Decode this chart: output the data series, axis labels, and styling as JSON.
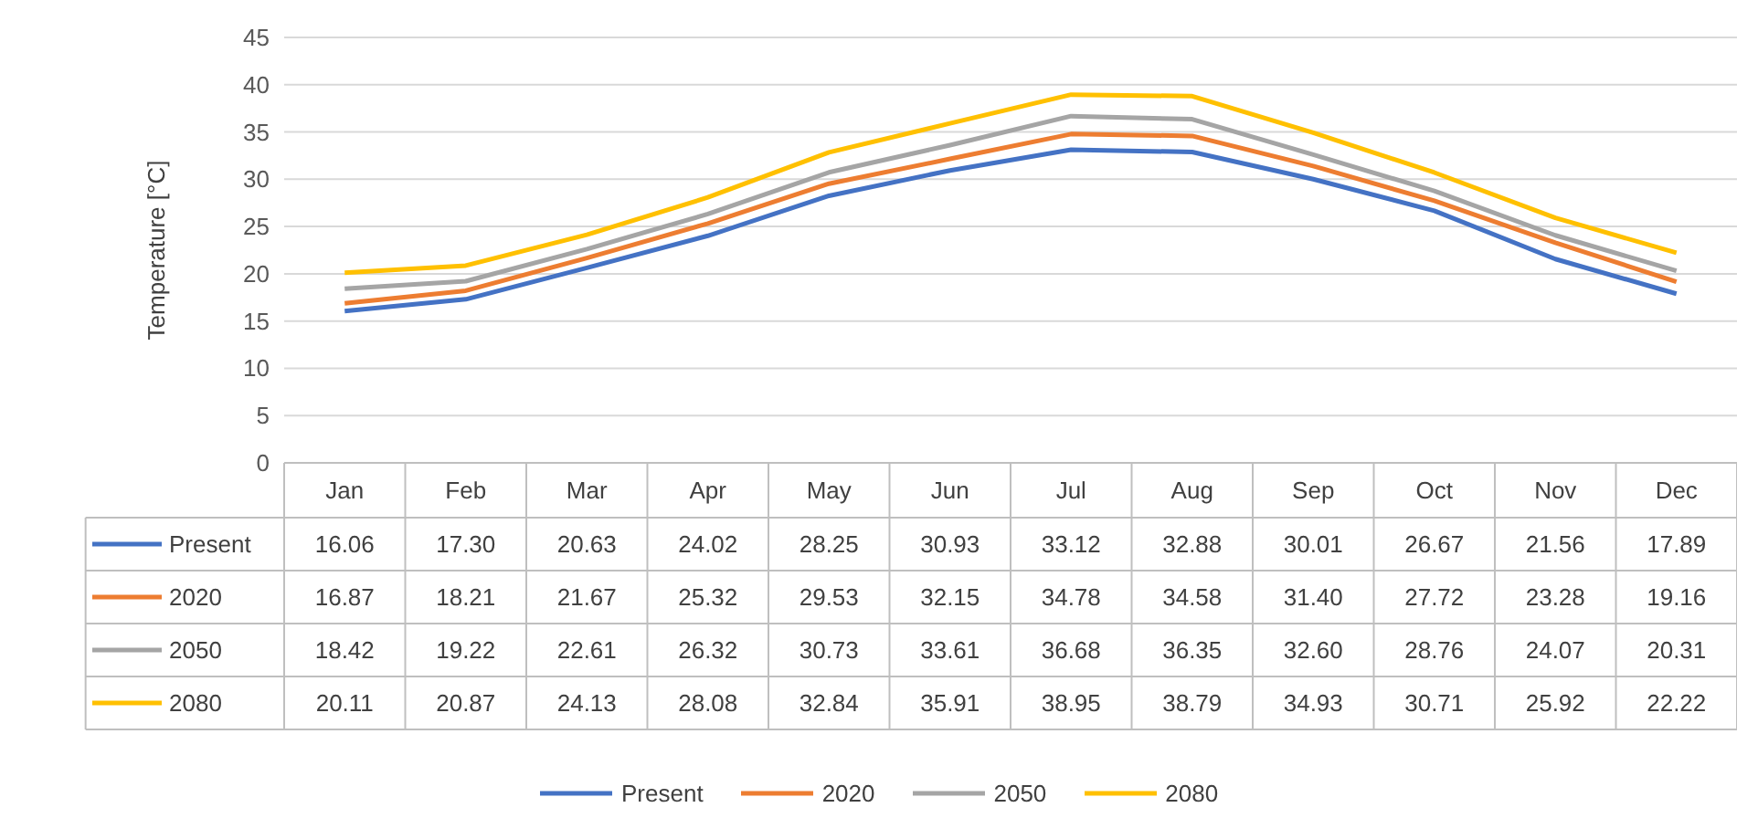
{
  "chart_data": {
    "type": "line",
    "ylabel": "Temperature [°C]",
    "categories": [
      "Jan",
      "Feb",
      "Mar",
      "Apr",
      "May",
      "Jun",
      "Jul",
      "Aug",
      "Sep",
      "Oct",
      "Nov",
      "Dec"
    ],
    "series": [
      {
        "name": "Present",
        "color": "#4472c4",
        "values": [
          16.06,
          17.3,
          20.63,
          24.02,
          28.25,
          30.93,
          33.12,
          32.88,
          30.01,
          26.67,
          21.56,
          17.89
        ],
        "value_labels": [
          "16.06",
          "17.30",
          "20.63",
          "24.02",
          "28.25",
          "30.93",
          "33.12",
          "32.88",
          "30.01",
          "26.67",
          "21.56",
          "17.89"
        ]
      },
      {
        "name": "2020",
        "color": "#ed7d31",
        "values": [
          16.87,
          18.21,
          21.67,
          25.32,
          29.53,
          32.15,
          34.78,
          34.58,
          31.4,
          27.72,
          23.28,
          19.16
        ],
        "value_labels": [
          "16.87",
          "18.21",
          "21.67",
          "25.32",
          "29.53",
          "32.15",
          "34.78",
          "34.58",
          "31.40",
          "27.72",
          "23.28",
          "19.16"
        ]
      },
      {
        "name": "2050",
        "color": "#a5a5a5",
        "values": [
          18.42,
          19.22,
          22.61,
          26.32,
          30.73,
          33.61,
          36.68,
          36.35,
          32.6,
          28.76,
          24.07,
          20.31
        ],
        "value_labels": [
          "18.42",
          "19.22",
          "22.61",
          "26.32",
          "30.73",
          "33.61",
          "36.68",
          "36.35",
          "32.60",
          "28.76",
          "24.07",
          "20.31"
        ]
      },
      {
        "name": "2080",
        "color": "#ffc000",
        "values": [
          20.11,
          20.87,
          24.13,
          28.08,
          32.84,
          35.91,
          38.95,
          38.79,
          34.93,
          30.71,
          25.92,
          22.22
        ],
        "value_labels": [
          "20.11",
          "20.87",
          "24.13",
          "28.08",
          "32.84",
          "35.91",
          "38.95",
          "38.79",
          "34.93",
          "30.71",
          "25.92",
          "22.22"
        ]
      }
    ],
    "ylim": [
      0,
      45
    ],
    "yticks": [
      0,
      5,
      10,
      15,
      20,
      25,
      30,
      35,
      40,
      45
    ],
    "grid": "y",
    "legend": "bottom"
  }
}
